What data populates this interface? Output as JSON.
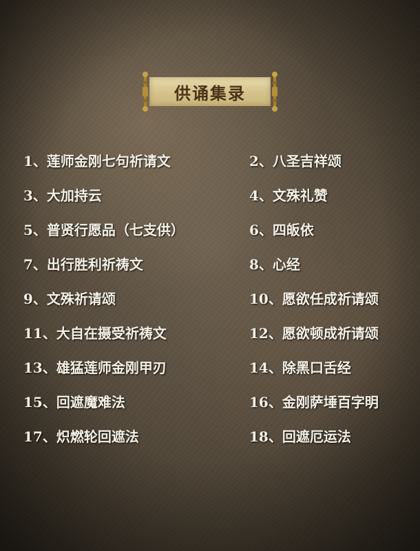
{
  "title": "供诵集录",
  "items_left": [
    "1、莲师金刚七句祈请文",
    "3、大加持云",
    "5、普贤行愿品（七支供）",
    "7、出行胜利祈祷文",
    "9、文殊祈请颂",
    "11、大自在摄受祈祷文",
    "13、雄猛莲师金刚甲刃",
    "15、回遮魔难法",
    "17、炽燃轮回遮法"
  ],
  "items_right": [
    "2、八圣吉祥颂",
    "4、文殊礼赞",
    "6、四皈依",
    "8、心经",
    "10、愿欲任成祈请颂",
    "12、愿欲顿成祈请颂",
    "14、除黑口舌经",
    "16、金刚萨埵百字明",
    "18、回遮厄运法"
  ],
  "colors": {
    "text": "#f4f0e6",
    "scroll_paper": "#d6c48e",
    "scroll_text": "#4a3318",
    "background": "#4e4436"
  }
}
